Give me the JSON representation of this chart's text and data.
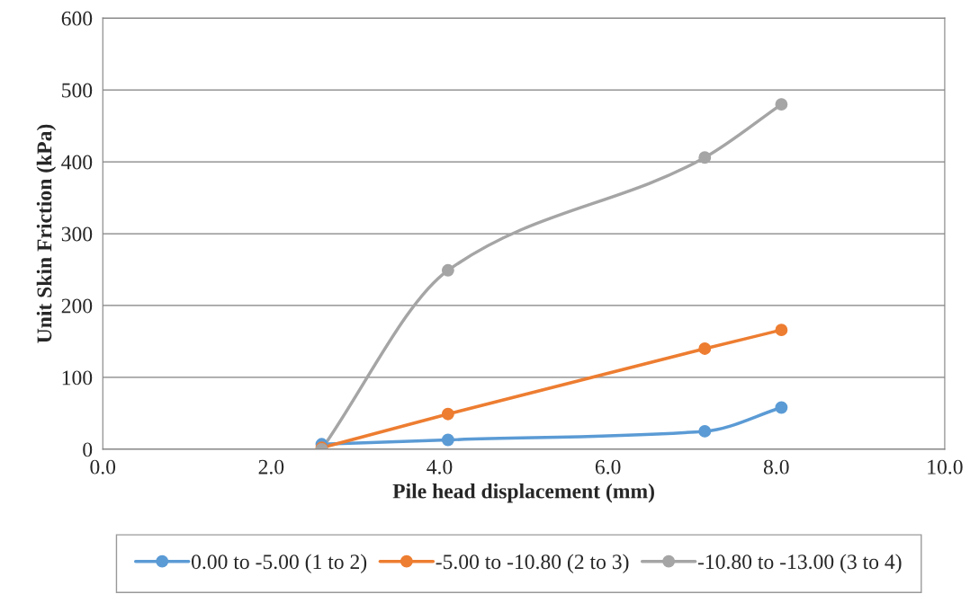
{
  "chart_data": {
    "type": "line",
    "xlabel": "Pile head displacement (mm)",
    "ylabel": "Unit Skin Friction (kPa)",
    "xlim": [
      0,
      10
    ],
    "xticks": [
      {
        "value": 0,
        "label": "0.0"
      },
      {
        "value": 2,
        "label": "2.0"
      },
      {
        "value": 4,
        "label": "4.0"
      },
      {
        "value": 6,
        "label": "6.0"
      },
      {
        "value": 8,
        "label": "8.0"
      },
      {
        "value": 10,
        "label": "10.0"
      }
    ],
    "ylim": [
      0,
      600
    ],
    "yticks": [
      0,
      100,
      200,
      300,
      400,
      500,
      600
    ],
    "grid": "y",
    "legend": "bottom",
    "marker": "circle",
    "line_style": "solid",
    "x": [
      2.6,
      4.1,
      7.15,
      8.06
    ],
    "series": [
      {
        "name": "0.00 to -5.00 (1 to 2)",
        "color": "#5b9bd5",
        "values": [
          7,
          13,
          25,
          58
        ]
      },
      {
        "name": "-5.00 to -10.80 (2 to 3)",
        "color": "#ed7d31",
        "values": [
          2,
          49,
          140,
          166
        ]
      },
      {
        "name": "-10.80 to -13.00 (3 to 4)",
        "color": "#a5a5a5",
        "values": [
          0,
          249,
          406,
          480
        ]
      }
    ]
  }
}
